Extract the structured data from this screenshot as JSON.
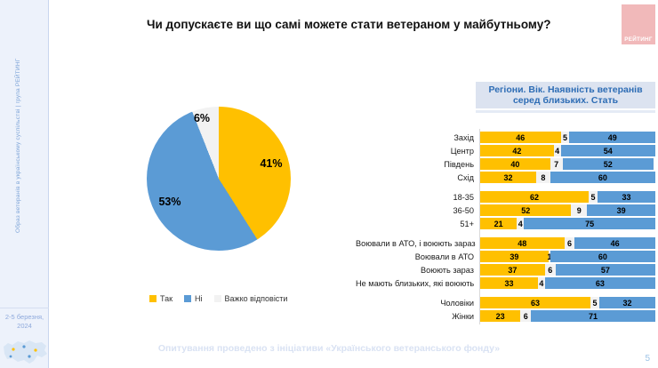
{
  "page": {
    "title": "Чи допускаєте ви що самі можете стати ветераном у майбутньому?",
    "footer": "Опитування проведено з ініціативи «Українського ветеранського фонду»",
    "page_number": "5",
    "logo_text": "РЕЙТИНГ"
  },
  "sidebar": {
    "vertical_text": "Образ ветеранів в українському суспільстві | група РЕЙТИНГ",
    "date_line1": "2-5 березня,",
    "date_line2": "2024"
  },
  "colors": {
    "yes": "#FFC000",
    "no": "#5B9BD5",
    "hard_to_say": "#F2F2F2",
    "accent_blue": "#2E6DB5",
    "logo_pink": "#F1B9BA"
  },
  "legend": [
    {
      "label": "Так",
      "color": "#FFC000"
    },
    {
      "label": "Ні",
      "color": "#5B9BD5"
    },
    {
      "label": "Важко відповісти",
      "color": "#F2F2F2"
    }
  ],
  "chart_data": [
    {
      "type": "pie",
      "title": "Чи допускаєте ви що самі можете стати ветераном у майбутньому?",
      "labels": [
        "Так",
        "Ні",
        "Важко відповісти"
      ],
      "values": [
        41,
        53,
        6
      ],
      "colors": [
        "#FFC000",
        "#5B9BD5",
        "#F2F2F2"
      ],
      "display_labels": [
        "41%",
        "53%",
        "6%"
      ],
      "legend_position": "bottom"
    },
    {
      "type": "bar",
      "stacked": true,
      "orientation": "horizontal",
      "title": "Регіони. Вік. Наявність ветеранів серед близьких. Стать",
      "series_order": [
        "Так",
        "Важко відповісти",
        "Ні"
      ],
      "series_colors": [
        "#FFC000",
        "#F2F2F2",
        "#5B9BD5"
      ],
      "xlim": [
        0,
        100
      ],
      "grid": false,
      "groups": [
        {
          "name": "regions",
          "rows": [
            {
              "label": "Захід",
              "values": [
                46,
                5,
                49
              ]
            },
            {
              "label": "Центр",
              "values": [
                42,
                4,
                54
              ]
            },
            {
              "label": "Південь",
              "values": [
                40,
                7,
                52
              ]
            },
            {
              "label": "Схід",
              "values": [
                32,
                8,
                60
              ]
            }
          ]
        },
        {
          "name": "age",
          "rows": [
            {
              "label": "18-35",
              "values": [
                62,
                5,
                33
              ]
            },
            {
              "label": "36-50",
              "values": [
                52,
                9,
                39
              ]
            },
            {
              "label": "51+",
              "values": [
                21,
                4,
                75
              ]
            }
          ]
        },
        {
          "name": "veterans-among-close",
          "rows": [
            {
              "label": "Воювали в АТО, і воюють зараз",
              "values": [
                48,
                6,
                46
              ]
            },
            {
              "label": "Воювали в АТО",
              "values": [
                39,
                1,
                60
              ]
            },
            {
              "label": "Воюють зараз",
              "values": [
                37,
                6,
                57
              ]
            },
            {
              "label": "Не мають близьких, які воюють",
              "values": [
                33,
                4,
                63
              ]
            }
          ]
        },
        {
          "name": "gender",
          "rows": [
            {
              "label": "Чоловіки",
              "values": [
                63,
                5,
                32
              ]
            },
            {
              "label": "Жінки",
              "values": [
                23,
                6,
                71
              ]
            }
          ]
        }
      ]
    }
  ]
}
